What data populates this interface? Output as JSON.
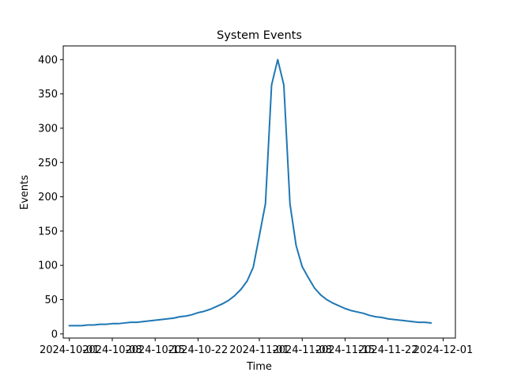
{
  "chart_data": {
    "type": "line",
    "title": "System Events",
    "xlabel": "Time",
    "ylabel": "Events",
    "x_start": "2024-10-01",
    "x_end": "2024-11-30",
    "xlim": [
      "2024-09-30",
      "2024-12-03"
    ],
    "ylim": [
      -6,
      420
    ],
    "x_ticks": [
      {
        "date": "2024-10-01",
        "label": "2024-10-01"
      },
      {
        "date": "2024-10-08",
        "label": "2024-10-08"
      },
      {
        "date": "2024-10-15",
        "label": "2024-10-15"
      },
      {
        "date": "2024-10-22",
        "label": "2024-10-22"
      },
      {
        "date": "2024-11-01",
        "label": "2024-11-01"
      },
      {
        "date": "2024-11-08",
        "label": "2024-11-08"
      },
      {
        "date": "2024-11-15",
        "label": "2024-11-15"
      },
      {
        "date": "2024-11-22",
        "label": "2024-11-22"
      },
      {
        "date": "2024-12-01",
        "label": "2024-12-01"
      }
    ],
    "y_ticks": [
      0,
      50,
      100,
      150,
      200,
      250,
      300,
      350,
      400
    ],
    "grid": false,
    "series": [
      {
        "color": "#1f77b4",
        "values": [
          12,
          12,
          12,
          13,
          13,
          14,
          14,
          15,
          15,
          16,
          17,
          17,
          18,
          19,
          20,
          21,
          22,
          23,
          25,
          26,
          28,
          31,
          33,
          36,
          40,
          44,
          49,
          56,
          65,
          77,
          97,
          143,
          190,
          363,
          400,
          363,
          190,
          129,
          98,
          82,
          67,
          57,
          50,
          45,
          41,
          37,
          34,
          32,
          30,
          27,
          25,
          24,
          22,
          21,
          20,
          19,
          18,
          17,
          17,
          16
        ]
      }
    ]
  }
}
